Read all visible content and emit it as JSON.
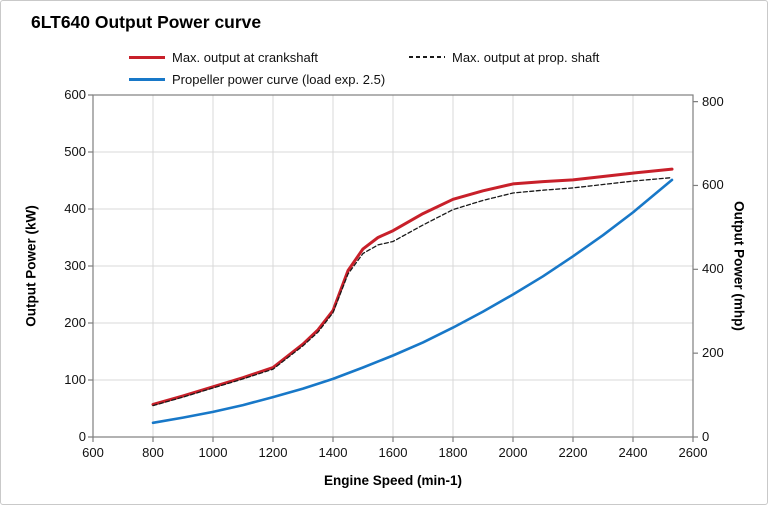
{
  "chart_data": {
    "type": "line",
    "title": "6LT640 Output Power curve",
    "xlabel": "Engine Speed (min-1)",
    "ylabel_left": "Output Power (kW)",
    "ylabel_right": "Output Power (mhp)",
    "x_range": [
      600,
      2600
    ],
    "y_left_range": [
      0,
      600
    ],
    "x_ticks": [
      600,
      800,
      1000,
      1200,
      1400,
      1600,
      1800,
      2000,
      2200,
      2400,
      2600
    ],
    "y_left_ticks": [
      0,
      100,
      200,
      300,
      400,
      500,
      600
    ],
    "y_right_ticks": [
      0,
      200,
      400,
      600,
      800
    ],
    "kw_per_mhp": 0.7355,
    "grid": true,
    "legend_position": "top",
    "colors": {
      "crankshaft": "#c8202a",
      "prop_shaft": "#1a1a1a",
      "propeller": "#1878c8",
      "gridline": "#d9d9d9",
      "axis": "#7f7f7f"
    },
    "series": [
      {
        "name": "Max. output at crankshaft",
        "style": "solid",
        "color": "#c8202a",
        "width": 3,
        "points": [
          [
            800,
            57
          ],
          [
            900,
            72
          ],
          [
            1000,
            88
          ],
          [
            1100,
            104
          ],
          [
            1200,
            122
          ],
          [
            1300,
            163
          ],
          [
            1350,
            188
          ],
          [
            1400,
            222
          ],
          [
            1450,
            292
          ],
          [
            1500,
            330
          ],
          [
            1550,
            350
          ],
          [
            1600,
            362
          ],
          [
            1700,
            392
          ],
          [
            1800,
            417
          ],
          [
            1900,
            432
          ],
          [
            2000,
            444
          ],
          [
            2100,
            448
          ],
          [
            2200,
            451
          ],
          [
            2300,
            457
          ],
          [
            2400,
            463
          ],
          [
            2530,
            470
          ]
        ]
      },
      {
        "name": "Max. output at prop. shaft",
        "style": "dashed",
        "color": "#1a1a1a",
        "width": 1.3,
        "points": [
          [
            800,
            55
          ],
          [
            900,
            70
          ],
          [
            1000,
            86
          ],
          [
            1100,
            102
          ],
          [
            1200,
            119
          ],
          [
            1300,
            160
          ],
          [
            1350,
            184
          ],
          [
            1400,
            218
          ],
          [
            1450,
            286
          ],
          [
            1500,
            322
          ],
          [
            1550,
            337
          ],
          [
            1600,
            343
          ],
          [
            1700,
            372
          ],
          [
            1800,
            399
          ],
          [
            1900,
            415
          ],
          [
            2000,
            428
          ],
          [
            2100,
            433
          ],
          [
            2200,
            437
          ],
          [
            2300,
            443
          ],
          [
            2400,
            449
          ],
          [
            2530,
            455
          ]
        ]
      },
      {
        "name": "Propeller power curve (load exp. 2.5)",
        "style": "solid",
        "color": "#1878c8",
        "width": 2.6,
        "points": [
          [
            800,
            25
          ],
          [
            900,
            34
          ],
          [
            1000,
            44
          ],
          [
            1100,
            56
          ],
          [
            1200,
            70
          ],
          [
            1300,
            85
          ],
          [
            1400,
            102
          ],
          [
            1500,
            122
          ],
          [
            1600,
            143
          ],
          [
            1700,
            166
          ],
          [
            1800,
            192
          ],
          [
            1900,
            220
          ],
          [
            2000,
            250
          ],
          [
            2100,
            282
          ],
          [
            2200,
            317
          ],
          [
            2300,
            354
          ],
          [
            2400,
            394
          ],
          [
            2530,
            451
          ]
        ]
      }
    ]
  }
}
